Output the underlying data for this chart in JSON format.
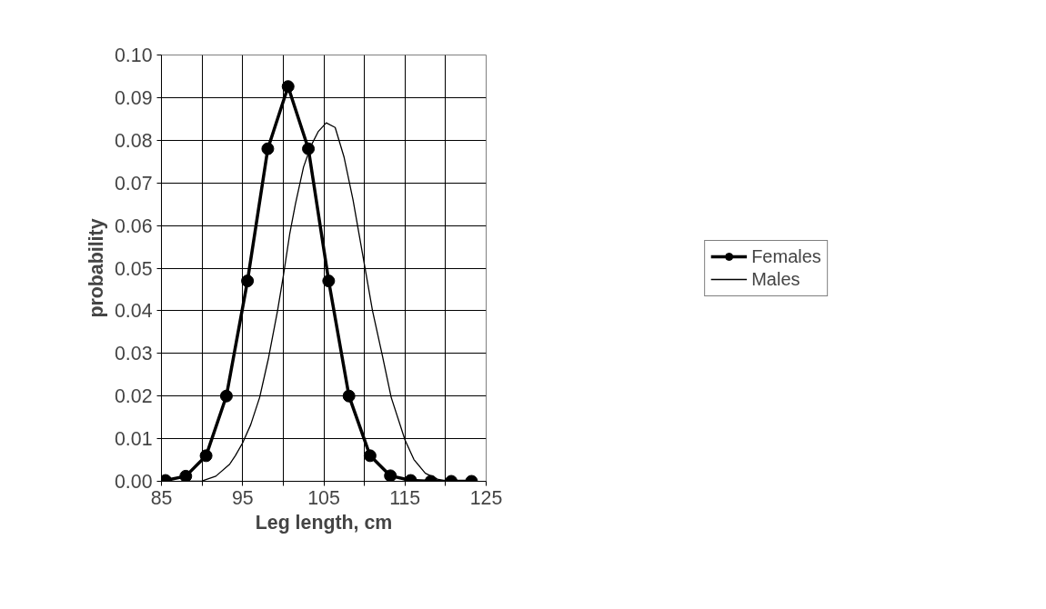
{
  "chart_data": {
    "type": "line",
    "xlabel": "Leg length, cm",
    "ylabel": "probability",
    "xlim": [
      85,
      125
    ],
    "ylim": [
      0,
      0.1
    ],
    "xticks": [
      85,
      {
        "value": 90,
        "label": null
      },
      95,
      {
        "value": 100,
        "label": null
      },
      105,
      {
        "value": 110,
        "label": null
      },
      115,
      {
        "value": 120,
        "label": null
      },
      125
    ],
    "yticks": [
      {
        "value": 0,
        "label": "0.00"
      },
      {
        "value": 0.01,
        "label": "0.01"
      },
      {
        "value": 0.02,
        "label": "0.02"
      },
      {
        "value": 0.03,
        "label": "0.03"
      },
      {
        "value": 0.04,
        "label": "0.04"
      },
      {
        "value": 0.05,
        "label": "0.05"
      },
      {
        "value": 0.06,
        "label": "0.06"
      },
      {
        "value": 0.07,
        "label": "0.07"
      },
      {
        "value": 0.08,
        "label": "0.08"
      },
      {
        "value": 0.09,
        "label": "0.09"
      },
      {
        "value": 0.1,
        "label": "0.10"
      }
    ],
    "grid": true,
    "legend": "right",
    "line_style": "solid",
    "series": [
      {
        "name": "Females",
        "color": "#000000",
        "marker": "circle",
        "x": [
          85.5,
          88,
          90.5,
          93,
          95.6,
          98.1,
          100.6,
          103.1,
          105.6,
          108.1,
          110.7,
          113.2,
          115.7,
          118.2,
          120.7,
          123.2
        ],
        "values": [
          0.0002,
          0.0012,
          0.006,
          0.02,
          0.047,
          0.078,
          0.0926,
          0.078,
          0.047,
          0.02,
          0.006,
          0.0013,
          0.0002,
          0,
          0,
          0
        ]
      },
      {
        "name": "Males",
        "color": "#000000",
        "marker": "none",
        "x": [
          88,
          90,
          91.7,
          93.4,
          94.1,
          95,
          96,
          97.1,
          98.2,
          99.3,
          100,
          100.8,
          101.5,
          102.5,
          103.4,
          104.3,
          105.3,
          106.4,
          107.5,
          108.6,
          110,
          111,
          112.2,
          113.3,
          115,
          116.1,
          117.5,
          119,
          120,
          121.6
        ],
        "values": [
          0,
          0.0001,
          0.0012,
          0.004,
          0.006,
          0.009,
          0.0133,
          0.0197,
          0.029,
          0.04,
          0.048,
          0.058,
          0.065,
          0.0737,
          0.0786,
          0.082,
          0.0841,
          0.083,
          0.076,
          0.066,
          0.0509,
          0.04,
          0.0296,
          0.0197,
          0.0097,
          0.0051,
          0.0019,
          0.0005,
          0.0001,
          0
        ]
      }
    ]
  }
}
